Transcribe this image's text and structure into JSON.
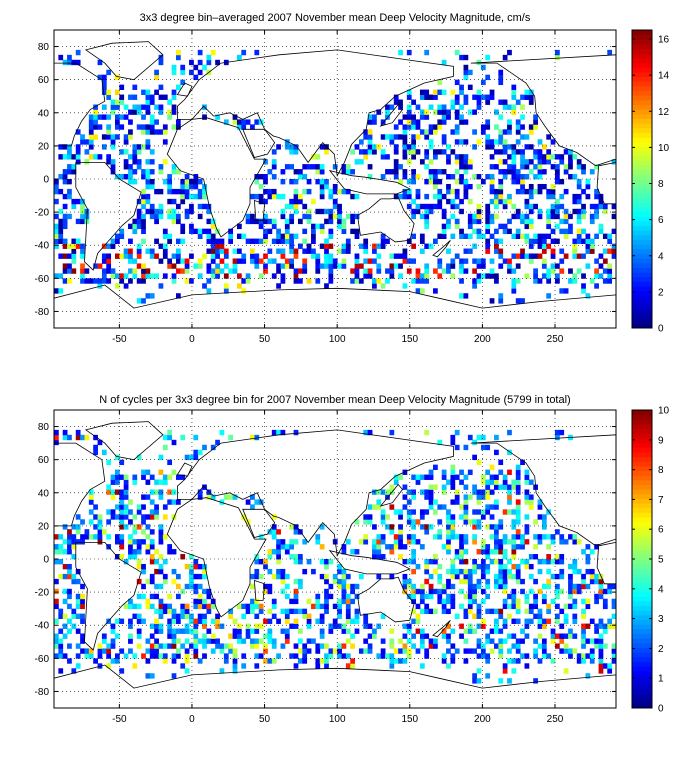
{
  "chart_data": [
    {
      "type": "heatmap",
      "title": "3x3 degree bin–averaged 2007 November mean Deep Velocity Magnitude, cm/s",
      "xlim": [
        -95,
        292
      ],
      "ylim": [
        -90,
        90
      ],
      "xticks": [
        -50,
        0,
        50,
        100,
        150,
        200,
        250
      ],
      "yticks": [
        80,
        60,
        40,
        20,
        0,
        -20,
        -40,
        -60,
        -80
      ],
      "bin_size_deg": 3,
      "colorbar": {
        "range": [
          0,
          16.5
        ],
        "ticks": [
          0,
          2,
          4,
          6,
          8,
          10,
          12,
          14,
          16
        ],
        "colormap": "jet"
      },
      "grid": true,
      "grid_style": "dotted",
      "value_distribution": "mostly 0-4 cm/s; scattered 6-10; high values (14-16) in Southern Ocean near 50S",
      "seed": 11
    },
    {
      "type": "heatmap",
      "title": "N of cycles per 3x3 degree bin for 2007 November mean Deep Velocity Magnitude (5799 in total)",
      "xlim": [
        -95,
        292
      ],
      "ylim": [
        -90,
        90
      ],
      "xticks": [
        -50,
        0,
        50,
        100,
        150,
        200,
        250
      ],
      "yticks": [
        80,
        60,
        40,
        20,
        0,
        -20,
        -40,
        -60,
        -80
      ],
      "bin_size_deg": 3,
      "colorbar": {
        "range": [
          0,
          10
        ],
        "ticks": [
          0,
          1,
          2,
          3,
          4,
          5,
          6,
          7,
          8,
          9,
          10
        ],
        "colormap": "jet"
      },
      "grid": true,
      "grid_style": "dotted",
      "total_cycles": 5799,
      "value_distribution": "mostly 1-4 cycles per bin; occasional 5-10",
      "seed": 29
    }
  ]
}
